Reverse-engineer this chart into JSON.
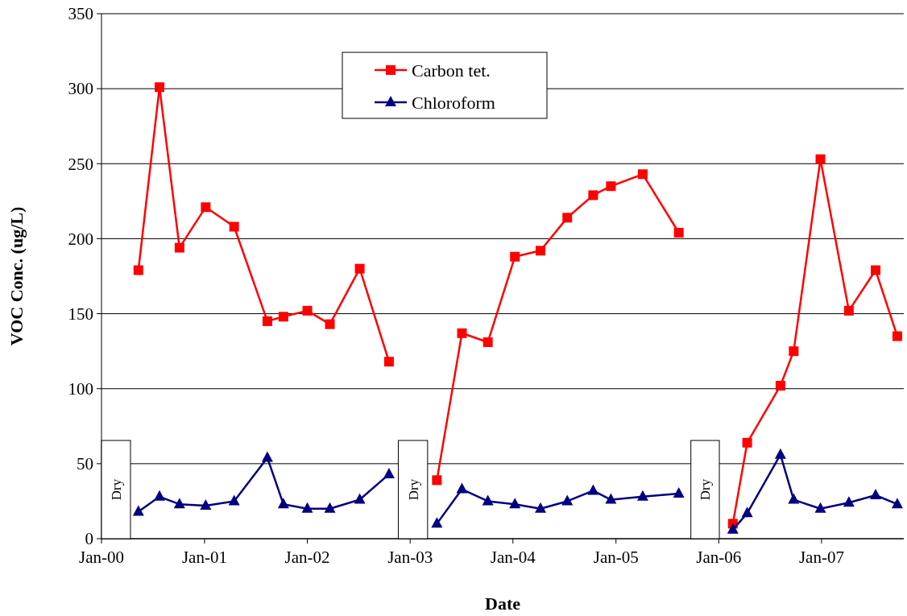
{
  "chart_data": {
    "type": "line",
    "xlabel": "Date",
    "ylabel": "VOC Conc. (ug/L)",
    "x": [
      "2000-05-11",
      "2000-07-25",
      "2000-10-04",
      "2001-01-05",
      "2001-04-16",
      "2001-08-12",
      "2001-10-08",
      "2002-01-01",
      "2002-03-22",
      "2002-07-06",
      "2002-10-18",
      "2003-01-11",
      "2003-04-06",
      "2003-07-04",
      "2003-10-04",
      "2004-01-08",
      "2004-04-08",
      "2004-07-12",
      "2004-10-12",
      "2004-12-14",
      "2005-04-06",
      "2005-08-12",
      "2005-11-14",
      "2006-02-20",
      "2006-04-12",
      "2006-08-08",
      "2006-09-24",
      "2006-12-28",
      "2007-04-08",
      "2007-07-12",
      "2007-09-27"
    ],
    "series": [
      {
        "name": "Carbon tet.",
        "color": "#ff0000",
        "marker": "square",
        "values": [
          179,
          301,
          194,
          221,
          208,
          145,
          148,
          152,
          143,
          180,
          118,
          null,
          39,
          137,
          131,
          188,
          192,
          214,
          229,
          235,
          243,
          204,
          null,
          10,
          64,
          102,
          125,
          253,
          152,
          179,
          135
        ]
      },
      {
        "name": "Chloroform",
        "color": "#000080",
        "marker": "triangle",
        "values": [
          18,
          28,
          23,
          22,
          25,
          54,
          23,
          20,
          20,
          26,
          43,
          null,
          10,
          33,
          25,
          23,
          20,
          25,
          32,
          26,
          28,
          30,
          null,
          6,
          17,
          56,
          26,
          20,
          24,
          29,
          23
        ]
      }
    ],
    "xlim": [
      "2000-01-01",
      "2007-10-20"
    ],
    "xticks": [
      {
        "value": "2000-01-01",
        "label": "Jan-00"
      },
      {
        "value": "2001-01-01",
        "label": "Jan-01"
      },
      {
        "value": "2002-01-01",
        "label": "Jan-02"
      },
      {
        "value": "2003-01-01",
        "label": "Jan-03"
      },
      {
        "value": "2004-01-01",
        "label": "Jan-04"
      },
      {
        "value": "2005-01-01",
        "label": "Jan-05"
      },
      {
        "value": "2006-01-01",
        "label": "Jan-06"
      },
      {
        "value": "2007-01-01",
        "label": "Jan-07"
      }
    ],
    "ylim": [
      0,
      350
    ],
    "yticks": [
      0,
      50,
      100,
      150,
      200,
      250,
      300,
      350
    ],
    "grid": "y",
    "legend": "top",
    "bands": [
      {
        "axis": "x",
        "from": "2000-01-01",
        "to": "2000-04-13",
        "label": "Dry",
        "color": "#ffffff"
      },
      {
        "axis": "x",
        "from": "2002-11-20",
        "to": "2003-03-04",
        "label": "Dry",
        "color": "#ffffff"
      },
      {
        "axis": "x",
        "from": "2005-09-24",
        "to": "2006-01-03",
        "label": "Dry",
        "color": "#ffffff"
      }
    ]
  }
}
